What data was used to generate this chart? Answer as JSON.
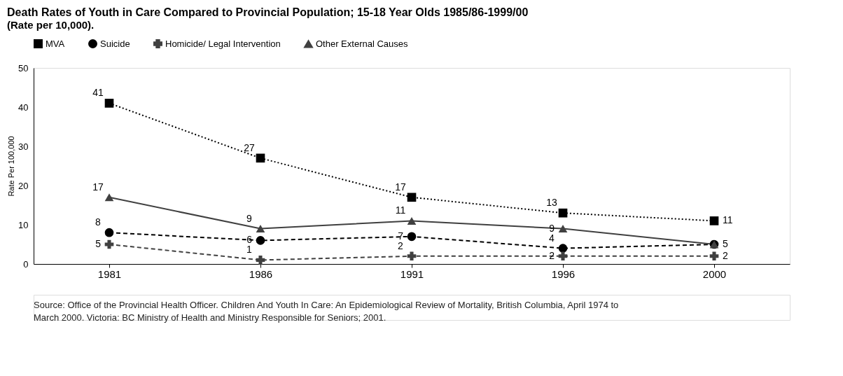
{
  "chart_data": {
    "type": "line",
    "title": "Death Rates of Youth in Care Compared to Provincial Population; 15-18 Year Olds 1985/86-1999/00",
    "subtitle": "(Rate per 10,000).",
    "ylabel": "Rate Per 100,000",
    "categories": [
      "1981",
      "1986",
      "1991",
      "1996",
      "2000"
    ],
    "series": [
      {
        "name": "MVA",
        "color": "#000000",
        "values": [
          41,
          27,
          17,
          13,
          11
        ],
        "value_labels": [
          "41",
          "27",
          "17",
          "13",
          "11"
        ],
        "marker": "square",
        "line_style": "dotted"
      },
      {
        "name": "Suicide",
        "color": "#000000",
        "values": [
          8,
          6,
          7,
          4,
          5
        ],
        "value_labels": [
          "8",
          "6",
          "7",
          "4",
          "5"
        ],
        "marker": "circle",
        "line_style": "dashed"
      },
      {
        "name": "Homicide/ Legal Intervention",
        "color": "#404040",
        "values": [
          5,
          1,
          2,
          2,
          2
        ],
        "value_labels": [
          "5",
          "1",
          "2",
          "2",
          "2"
        ],
        "marker": "cross",
        "line_style": "dashed"
      },
      {
        "name": "Other External Causes",
        "color": "#404040",
        "values": [
          17,
          9,
          11,
          9,
          5
        ],
        "value_labels": [
          "17",
          "9",
          "11",
          "9",
          null
        ],
        "marker": "triangle",
        "line_style": "solid"
      }
    ],
    "ylim": [
      0,
      50
    ],
    "yticks": [
      0,
      10,
      20,
      30,
      40,
      50
    ],
    "grid": false,
    "legend": "top",
    "data_labels": true,
    "annotations": [
      "Source: Office of the Provincial Health Officer. Children And Youth In Care: An Epidemiological Review of Mortality, British Columbia, April 1974 to March 2000. Victoria: BC Ministry of Health and Ministry Responsible for Seniors; 2001."
    ]
  }
}
